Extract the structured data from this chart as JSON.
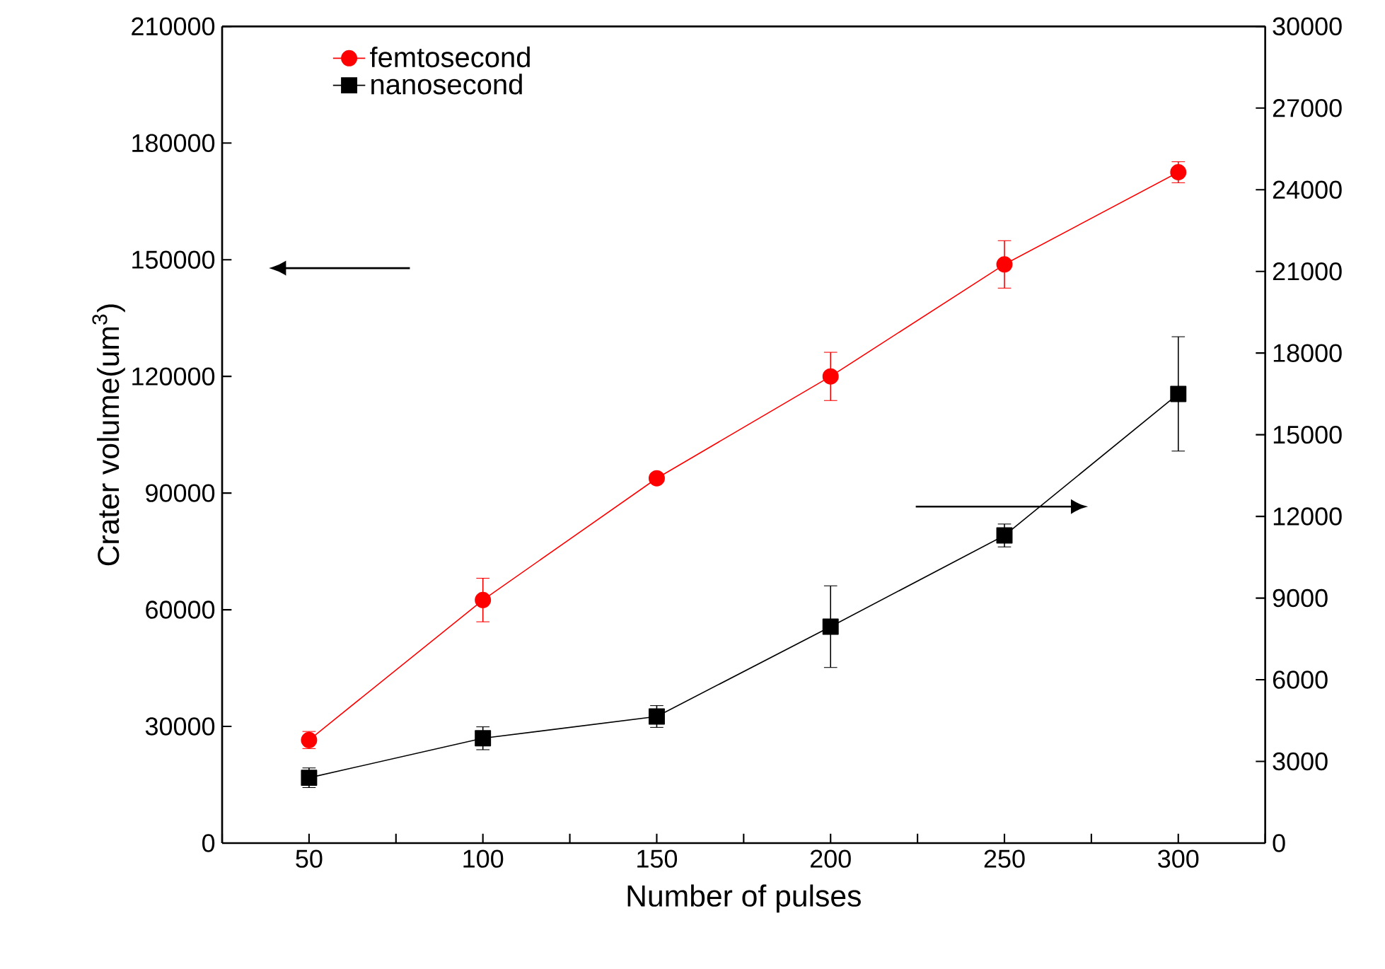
{
  "chart_data": {
    "type": "line",
    "xlabel": "Number of pulses",
    "ylabel": "Crater volume(um$^{3}$)",
    "x": [
      50,
      100,
      150,
      200,
      250,
      300
    ],
    "xlim": [
      25,
      325
    ],
    "xticks": [
      {
        "value": 25,
        "label": null
      },
      50,
      {
        "value": 75,
        "label": null
      },
      100,
      {
        "value": 125,
        "label": null
      },
      150,
      {
        "value": 175,
        "label": null
      },
      200,
      {
        "value": 225,
        "label": null
      },
      250,
      {
        "value": 275,
        "label": null
      },
      300,
      {
        "value": 325,
        "label": null
      }
    ],
    "ylim": [
      0,
      210000
    ],
    "yticks": [
      0,
      30000,
      60000,
      90000,
      120000,
      150000,
      180000,
      210000
    ],
    "y2lim": [
      0,
      30000
    ],
    "y2ticks": [
      0,
      3000,
      6000,
      9000,
      12000,
      15000,
      18000,
      21000,
      24000,
      27000,
      30000
    ],
    "series": [
      {
        "name": "femtosecond",
        "color": "#ff0000",
        "marker": "circle",
        "values": [
          26500,
          62500,
          93800,
          120000,
          148800,
          172500
        ],
        "errors": [
          2200,
          5600,
          null,
          6200,
          6100,
          2700
        ]
      },
      {
        "name": "nanosecond",
        "color": "#000000",
        "marker": "square",
        "axis": "y2",
        "values": [
          2400,
          3850,
          4650,
          7950,
          11300,
          16500
        ],
        "errors": [
          360,
          420,
          400,
          1500,
          420,
          2100
        ]
      }
    ],
    "legend": "top left",
    "line_style": "solid",
    "grid": false
  }
}
